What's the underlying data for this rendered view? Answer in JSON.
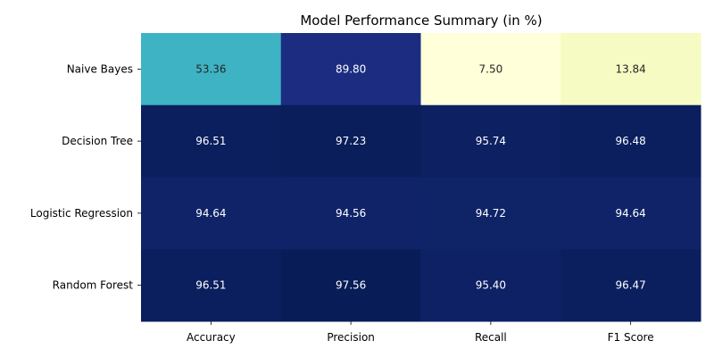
{
  "chart_data": {
    "type": "heatmap",
    "title": "Model Performance Summary (in %)",
    "rows": [
      "Naive Bayes",
      "Decision Tree",
      "Logistic Regression",
      "Random Forest"
    ],
    "columns": [
      "Accuracy",
      "Precision",
      "Recall",
      "F1 Score"
    ],
    "values": [
      [
        53.36,
        89.8,
        7.5,
        13.84
      ],
      [
        96.51,
        97.23,
        95.74,
        96.48
      ],
      [
        94.64,
        94.56,
        94.72,
        94.64
      ],
      [
        96.51,
        97.56,
        95.4,
        96.47
      ]
    ],
    "value_labels": [
      [
        "53.36",
        "89.80",
        "7.50",
        "13.84"
      ],
      [
        "96.51",
        "97.23",
        "95.74",
        "96.48"
      ],
      [
        "94.64",
        "94.56",
        "94.72",
        "94.64"
      ],
      [
        "96.51",
        "97.56",
        "95.40",
        "96.47"
      ]
    ],
    "colormap": "YlGnBu",
    "colorbar": false,
    "annotations": true
  }
}
